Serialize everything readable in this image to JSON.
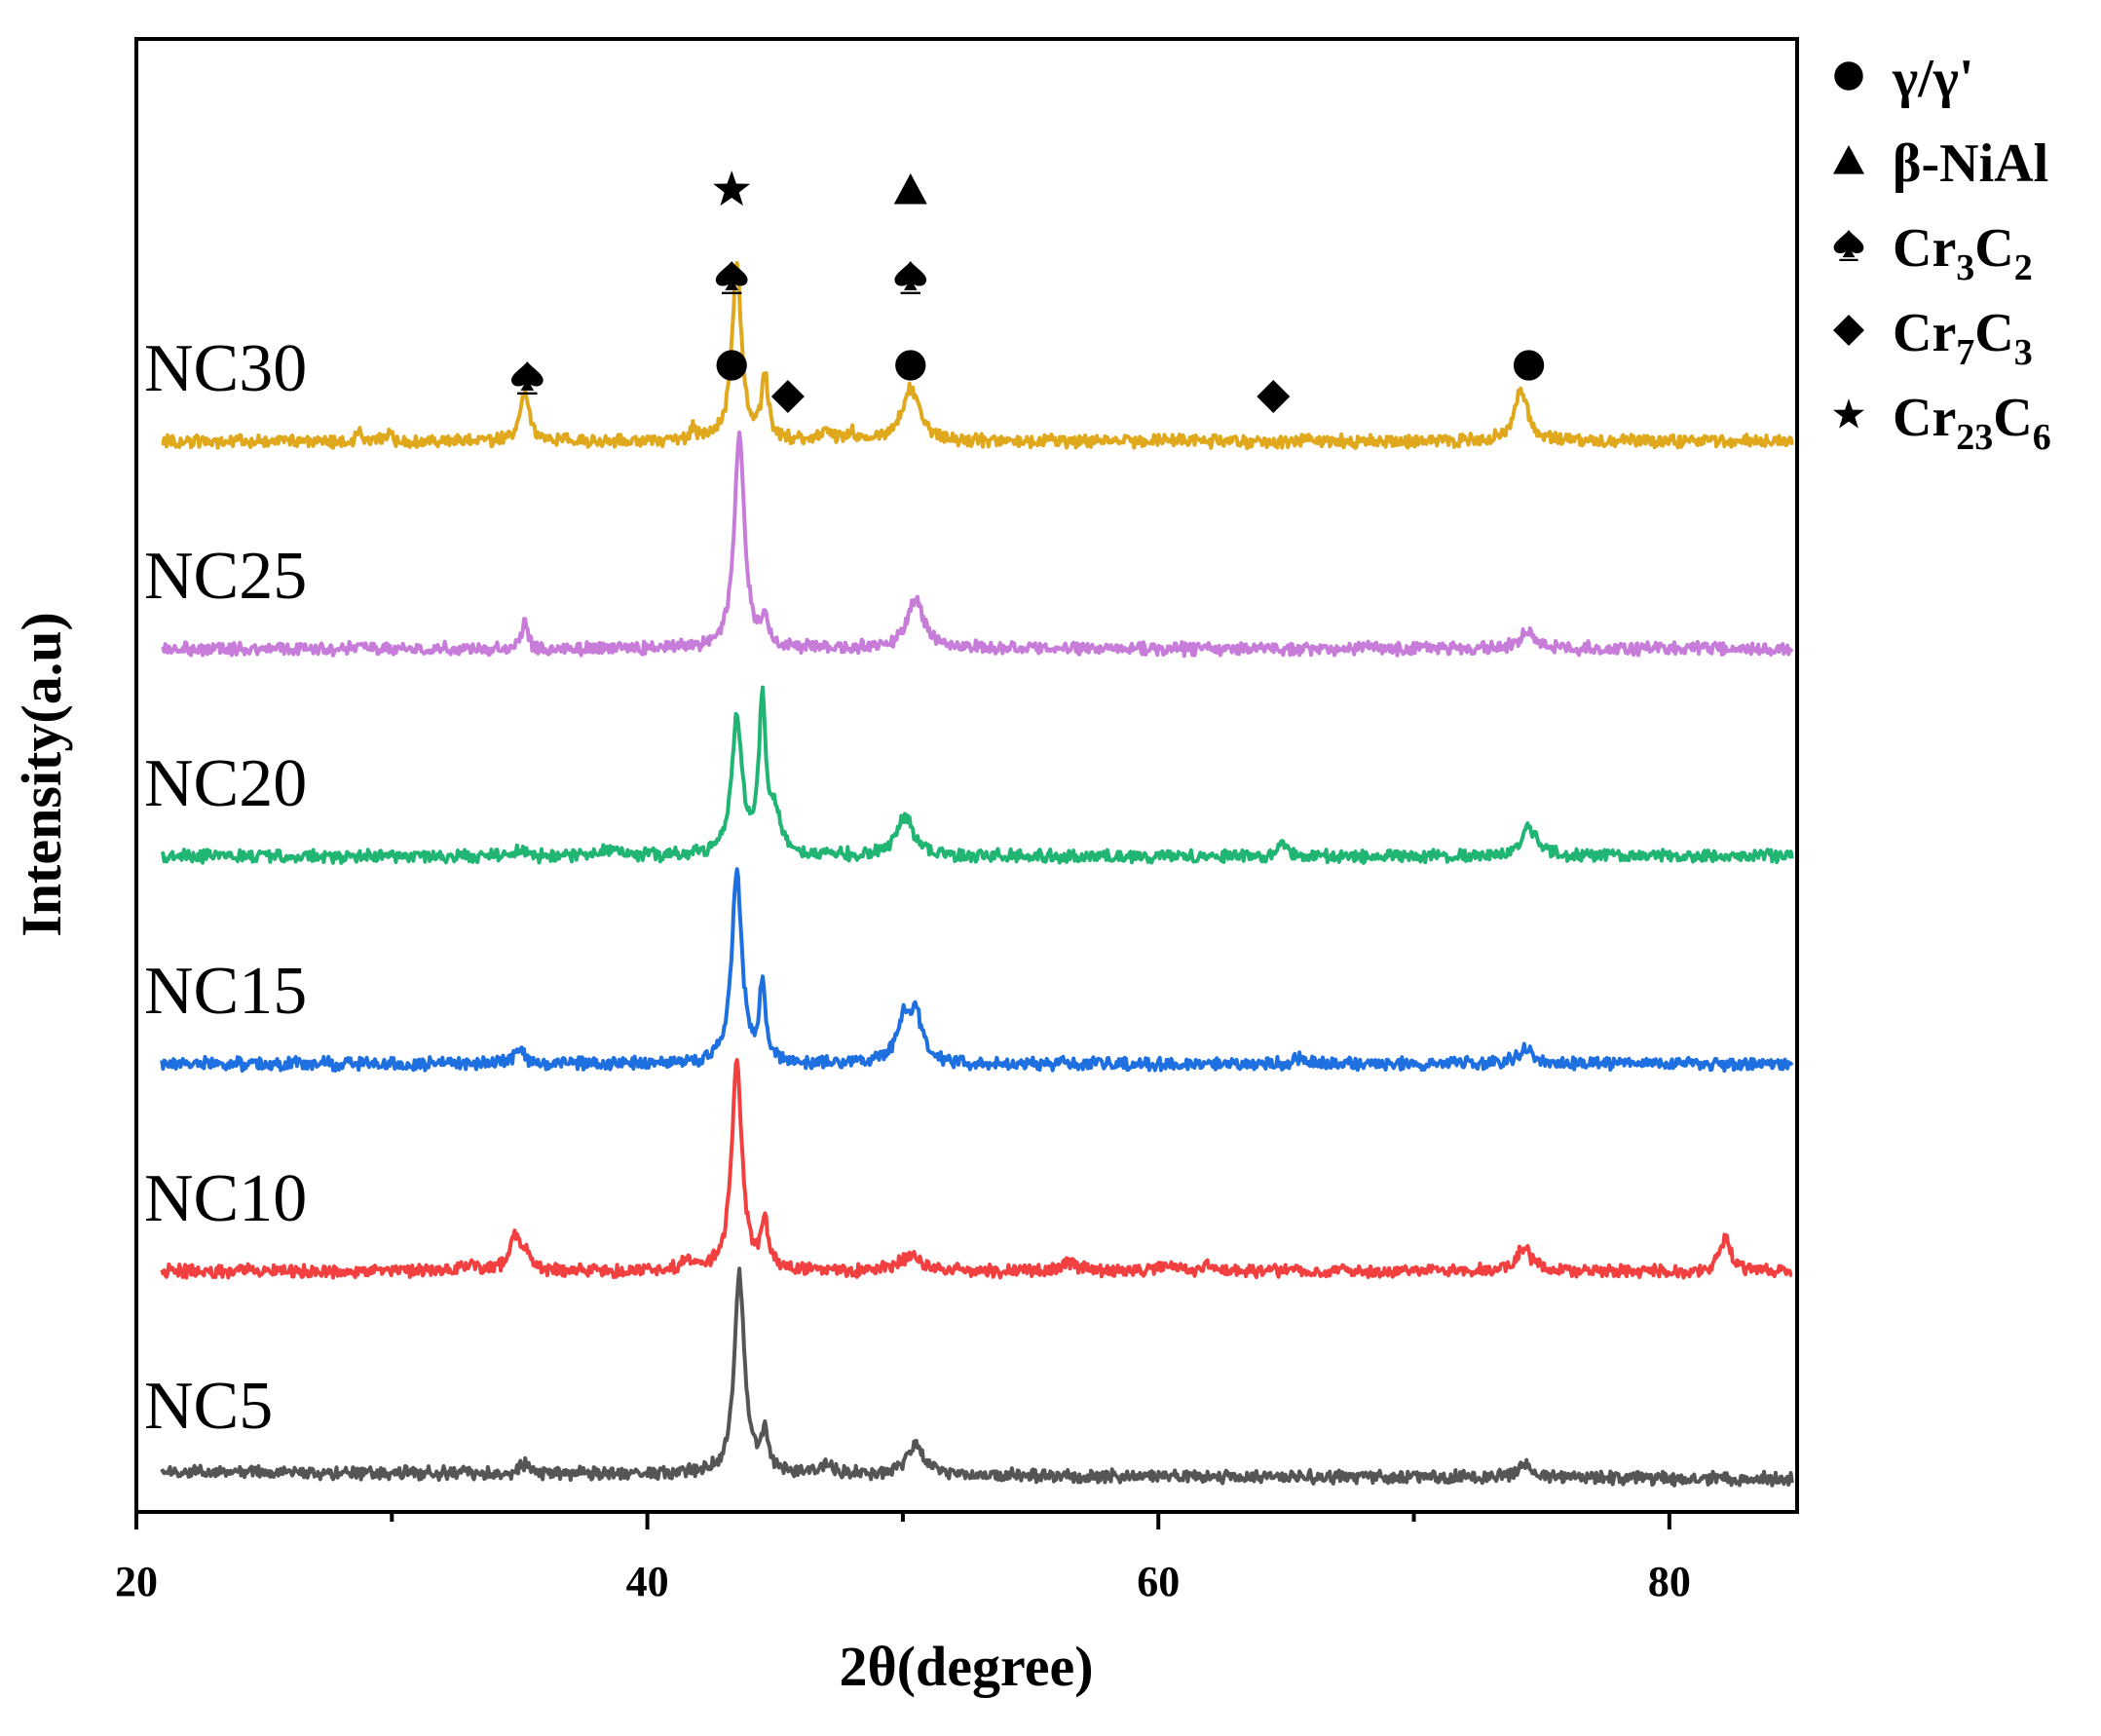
{
  "chart_data": {
    "type": "line",
    "title": "",
    "xlabel": "2θ(degree)",
    "ylabel": "Intensity(a.u)",
    "xlim": [
      20,
      85
    ],
    "x_ticks": [
      20,
      40,
      60,
      80
    ],
    "x_tick_labels": [
      "20",
      "40",
      "60",
      "80"
    ],
    "grid": false,
    "legend_position": "right-top-outside",
    "legend": [
      {
        "symbol": "circle",
        "text": "γ/γ'",
        "base": "γ/γ'",
        "sub1": "",
        "mid": "",
        "sub2": ""
      },
      {
        "symbol": "triangle",
        "text": "β-NiAl",
        "base": "β-NiAl",
        "sub1": "",
        "mid": "",
        "sub2": ""
      },
      {
        "symbol": "spade",
        "text": "Cr3C2",
        "base": "Cr",
        "sub1": "3",
        "mid": "C",
        "sub2": "2"
      },
      {
        "symbol": "diamond",
        "text": "Cr7C3",
        "base": "Cr",
        "sub1": "7",
        "mid": "C",
        "sub2": "3"
      },
      {
        "symbol": "star",
        "text": "Cr23C6",
        "base": "Cr",
        "sub1": "23",
        "mid": "C",
        "sub2": "6"
      }
    ],
    "series": [
      {
        "name": "NC30",
        "color": "#E0A81C",
        "offset": 5,
        "baseline": 0.0,
        "peaks": [
          [
            28.7,
            0.18,
            0.1
          ],
          [
            29.9,
            0.12,
            0.1
          ],
          [
            35.2,
            0.7,
            0.22
          ],
          [
            41.8,
            0.18,
            0.15
          ],
          [
            43.5,
            2.65,
            0.22
          ],
          [
            44.6,
            0.95,
            0.16
          ],
          [
            47.0,
            0.12,
            0.2
          ],
          [
            48.0,
            0.12,
            0.2
          ],
          [
            50.3,
            0.8,
            0.4
          ],
          [
            74.2,
            0.75,
            0.32
          ]
        ]
      },
      {
        "name": "NC25",
        "color": "#C77CD9",
        "offset": 4,
        "baseline": 0.0,
        "peaks": [
          [
            35.2,
            0.4,
            0.12
          ],
          [
            43.6,
            3.2,
            0.24
          ],
          [
            44.6,
            0.4,
            0.18
          ],
          [
            50.5,
            0.75,
            0.4
          ],
          [
            74.4,
            0.25,
            0.35
          ]
        ]
      },
      {
        "name": "NC20",
        "color": "#21B573",
        "offset": 3,
        "baseline": 0.0,
        "peaks": [
          [
            35.0,
            0.1,
            0.2
          ],
          [
            38.5,
            0.1,
            0.4
          ],
          [
            43.5,
            2.1,
            0.24
          ],
          [
            44.5,
            2.25,
            0.16
          ],
          [
            45.0,
            0.55,
            0.3
          ],
          [
            50.1,
            0.6,
            0.4
          ],
          [
            64.9,
            0.2,
            0.2
          ],
          [
            74.5,
            0.45,
            0.35
          ]
        ]
      },
      {
        "name": "NC15",
        "color": "#1E6FE0",
        "offset": 2,
        "baseline": 0.0,
        "peaks": [
          [
            35.0,
            0.22,
            0.2
          ],
          [
            43.5,
            2.85,
            0.24
          ],
          [
            44.5,
            1.2,
            0.14
          ],
          [
            50.0,
            0.6,
            0.3
          ],
          [
            50.5,
            0.7,
            0.3
          ],
          [
            65.5,
            0.1,
            0.2
          ],
          [
            74.4,
            0.22,
            0.35
          ]
        ]
      },
      {
        "name": "NC10",
        "color": "#F24040",
        "offset": 1,
        "baseline": 0.0,
        "peaks": [
          [
            33.0,
            0.1,
            0.3
          ],
          [
            34.8,
            0.55,
            0.22
          ],
          [
            35.3,
            0.22,
            0.2
          ],
          [
            41.5,
            0.18,
            0.2
          ],
          [
            43.5,
            3.15,
            0.24
          ],
          [
            44.6,
            0.7,
            0.16
          ],
          [
            50.3,
            0.22,
            0.5
          ],
          [
            56.5,
            0.12,
            0.4
          ],
          [
            60.3,
            0.12,
            0.3
          ],
          [
            62.0,
            0.1,
            0.3
          ],
          [
            74.3,
            0.35,
            0.35
          ],
          [
            82.2,
            0.5,
            0.25
          ]
        ]
      },
      {
        "name": "NC5",
        "color": "#555555",
        "offset": 0,
        "baseline": 0.1,
        "peaks": [
          [
            35.2,
            0.15,
            0.2
          ],
          [
            43.6,
            3.0,
            0.24
          ],
          [
            44.6,
            0.6,
            0.16
          ],
          [
            47.0,
            0.15,
            0.3
          ],
          [
            50.5,
            0.45,
            0.4
          ],
          [
            74.3,
            0.2,
            0.35
          ]
        ]
      }
    ],
    "annotations": [
      {
        "symbol": "spade",
        "x": 35.3,
        "level": 0
      },
      {
        "symbol": "circle",
        "x": 43.3,
        "level": 0
      },
      {
        "symbol": "spade",
        "x": 43.3,
        "level": 1
      },
      {
        "symbol": "star",
        "x": 43.3,
        "level": 2
      },
      {
        "symbol": "diamond",
        "x": 45.5,
        "level": -1
      },
      {
        "symbol": "circle",
        "x": 50.3,
        "level": 0
      },
      {
        "symbol": "spade",
        "x": 50.3,
        "level": 1
      },
      {
        "symbol": "triangle",
        "x": 50.3,
        "level": 2
      },
      {
        "symbol": "diamond",
        "x": 64.5,
        "level": -1
      },
      {
        "symbol": "circle",
        "x": 74.5,
        "level": 0
      }
    ]
  }
}
